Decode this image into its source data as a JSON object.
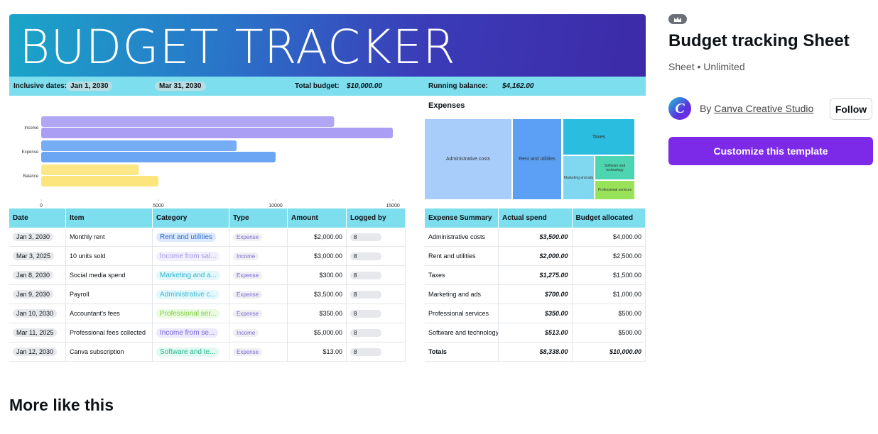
{
  "preview": {
    "title": "BUDGET TRACKER",
    "info": {
      "dates_label": "Inclusive dates:",
      "start": "Jan 1, 2030",
      "end": "Mar 31, 2030",
      "budget_label": "Total budget:",
      "budget": "$10,000.00",
      "balance_label": "Running balance:",
      "balance": "$4,162.00"
    },
    "chart_data": {
      "type": "bar",
      "orientation": "horizontal",
      "categories": [
        "Income",
        "Expense",
        "Balance"
      ],
      "colors": [
        "#a99ef3",
        "#6aa6f3",
        "#fce57c"
      ],
      "series": [
        {
          "values": [
            12500,
            8338,
            4162
          ]
        },
        {
          "values": [
            15000,
            10000,
            5000
          ]
        }
      ],
      "xlim": [
        0,
        15000
      ],
      "xticks": [
        0,
        5000,
        10000,
        15000
      ]
    },
    "treemap": {
      "title": "Expenses",
      "labels": [
        "Administrative costs",
        "Rent and utilities",
        "Taxes",
        "Marketing and ads",
        "Software and technology",
        "Professional services"
      ]
    },
    "transactions": {
      "columns": [
        "Date",
        "Item",
        "Category",
        "Type",
        "Amount",
        "Logged by"
      ],
      "rows": [
        [
          "Jan 3, 2030",
          "Monthly rent",
          "Rent and utilities",
          "Expense",
          "$2,000.00",
          "8"
        ],
        [
          "Mar 3, 2025",
          "10 units sold",
          "Income from sal...",
          "Income",
          "$3,000.00",
          "8"
        ],
        [
          "Jan 8, 2030",
          "Social media spend",
          "Marketing and a...",
          "Expense",
          "$300.00",
          "8"
        ],
        [
          "Jan 9, 2030",
          "Payroll",
          "Administrative c...",
          "Expense",
          "$3,500.00",
          "8"
        ],
        [
          "Jan 10, 2030",
          "Accountant's fees",
          "Professional ser...",
          "Expense",
          "$350.00",
          "8"
        ],
        [
          "Mar 11, 2025",
          "Professional fees collected",
          "Income from se...",
          "Income",
          "$5,000.00",
          "8"
        ],
        [
          "Jan 12, 2030",
          "Canva subscription",
          "Software and te...",
          "Expense",
          "$13.00",
          "8"
        ]
      ]
    },
    "summary": {
      "columns": [
        "Expense Summary",
        "Actual spend",
        "Budget allocated"
      ],
      "rows": [
        [
          "Administrative costs",
          "$3,500.00",
          "$4,000.00"
        ],
        [
          "Rent and utilities",
          "$2,000.00",
          "$2,500.00"
        ],
        [
          "Taxes",
          "$1,275.00",
          "$1,500.00"
        ],
        [
          "Marketing and ads",
          "$700.00",
          "$1,000.00"
        ],
        [
          "Professional services",
          "$350.00",
          "$500.00"
        ],
        [
          "Software and technology",
          "$513.00",
          "$500.00"
        ],
        [
          "Totals",
          "$8,338.00",
          "$10,000.00"
        ]
      ]
    }
  },
  "panel": {
    "title": "Budget tracking Sheet",
    "subtitle": "Sheet • Unlimited",
    "by": "By",
    "author": "Canva Creative Studio",
    "follow": "Follow",
    "cta": "Customize this template"
  },
  "more": "More like this"
}
